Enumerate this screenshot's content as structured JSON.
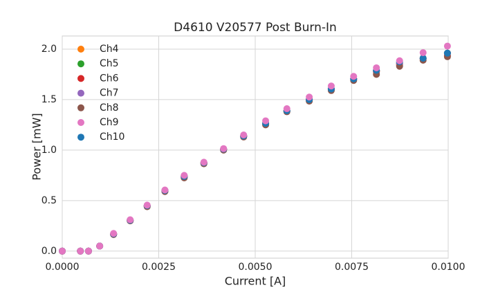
{
  "chart_data": {
    "type": "scatter",
    "title": "D4610 V20577 Post Burn-In",
    "xlabel": "Current [A]",
    "ylabel": "Power [mW]",
    "x": [
      0,
      0.00047,
      0.00068,
      0.00097,
      0.00133,
      0.00176,
      0.0022,
      0.00266,
      0.00316,
      0.00367,
      0.00418,
      0.0047,
      0.00527,
      0.00582,
      0.0064,
      0.00697,
      0.00755,
      0.00814,
      0.00874,
      0.00935,
      0.00998
    ],
    "series": [
      {
        "name": "Ch4",
        "color": "#ff7f0e",
        "values": [
          0,
          0,
          0,
          0.05,
          0.17,
          0.305,
          0.45,
          0.6,
          0.74,
          0.875,
          1.01,
          1.14,
          1.265,
          1.39,
          1.5,
          1.605,
          1.705,
          1.785,
          1.86,
          1.91,
          1.96
        ]
      },
      {
        "name": "Ch5",
        "color": "#2ca02c",
        "values": [
          0,
          0,
          0,
          0.05,
          0.17,
          0.305,
          0.45,
          0.6,
          0.74,
          0.875,
          1.01,
          1.14,
          1.265,
          1.39,
          1.5,
          1.605,
          1.705,
          1.785,
          1.86,
          1.91,
          1.96
        ]
      },
      {
        "name": "Ch6",
        "color": "#d62728",
        "values": [
          0,
          0,
          0,
          0.05,
          0.165,
          0.3,
          0.445,
          0.595,
          0.73,
          0.87,
          1.005,
          1.135,
          1.255,
          1.385,
          1.49,
          1.6,
          1.705,
          1.775,
          1.845,
          1.905,
          1.935
        ]
      },
      {
        "name": "Ch7",
        "color": "#9467bd",
        "values": [
          0,
          0,
          0,
          0.05,
          0.17,
          0.305,
          0.45,
          0.6,
          0.74,
          0.875,
          1.01,
          1.14,
          1.265,
          1.39,
          1.5,
          1.605,
          1.705,
          1.785,
          1.86,
          1.91,
          1.96
        ]
      },
      {
        "name": "Ch8",
        "color": "#8c564b",
        "values": [
          0,
          0,
          0,
          0.05,
          0.165,
          0.3,
          0.44,
          0.59,
          0.725,
          0.865,
          1.0,
          1.13,
          1.25,
          1.38,
          1.485,
          1.59,
          1.69,
          1.75,
          1.83,
          1.89,
          1.925
        ]
      },
      {
        "name": "Ch10",
        "color": "#1f77b4",
        "values": [
          0,
          0,
          0,
          0.05,
          0.17,
          0.305,
          0.45,
          0.6,
          0.74,
          0.875,
          1.01,
          1.14,
          1.265,
          1.39,
          1.5,
          1.605,
          1.705,
          1.79,
          1.875,
          1.91,
          1.96
        ]
      },
      {
        "name": "Ch9",
        "color": "#e377c2",
        "values": [
          0,
          0,
          0,
          0.05,
          0.175,
          0.31,
          0.455,
          0.605,
          0.75,
          0.88,
          1.015,
          1.15,
          1.29,
          1.41,
          1.525,
          1.635,
          1.73,
          1.815,
          1.885,
          1.965,
          2.03
        ]
      }
    ],
    "legend_order": [
      "Ch4",
      "Ch5",
      "Ch6",
      "Ch7",
      "Ch8",
      "Ch9",
      "Ch10"
    ],
    "xlim": [
      0,
      0.01
    ],
    "xticks": [
      {
        "value": 0,
        "label": "0.0000"
      },
      {
        "value": 0.0025,
        "label": "0.0025"
      },
      {
        "value": 0.005,
        "label": "0.0050"
      },
      {
        "value": 0.0075,
        "label": "0.0075"
      },
      {
        "value": 0.01,
        "label": "0.0100"
      }
    ],
    "ylim": [
      -0.07,
      2.13
    ],
    "yticks": [
      {
        "value": 0,
        "label": "0.0"
      },
      0.5,
      {
        "value": 1,
        "label": "1.0"
      },
      1.5,
      {
        "value": 2,
        "label": "2.0"
      }
    ],
    "grid": true,
    "legend": "upper left"
  }
}
